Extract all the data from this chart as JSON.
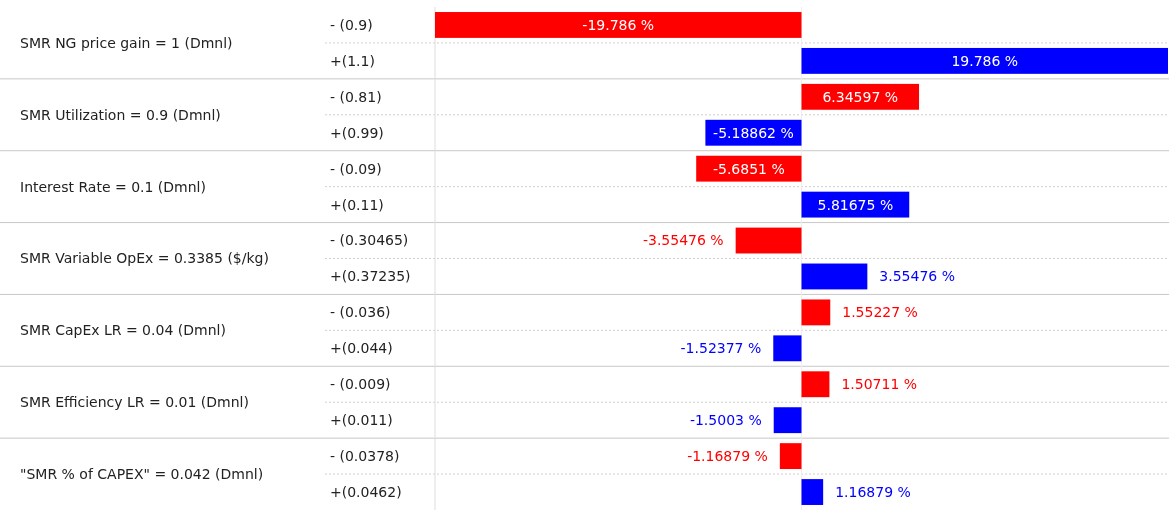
{
  "chart_data": {
    "type": "bar",
    "orientation": "horizontal",
    "categories": [
      "- (0.9)",
      "+(1.1)",
      "- (0.81)",
      "+(0.99)",
      "- (0.09)",
      "+(0.11)",
      "- (0.30465)",
      "+(0.37235)",
      "- (0.036)",
      "+(0.044)",
      "- (0.009)",
      "+(0.011)",
      "- (0.0378)",
      "+(0.0462)"
    ],
    "values": [
      -19.786,
      19.786,
      6.34597,
      -5.18862,
      -5.6851,
      5.81675,
      -3.55476,
      3.55476,
      1.55227,
      -1.52377,
      1.50711,
      -1.5003,
      -1.16879,
      1.16879
    ],
    "colors": [
      "#ff0000",
      "#0000ff",
      "#ff0000",
      "#0000ff",
      "#ff0000",
      "#0000ff",
      "#ff0000",
      "#0000ff",
      "#ff0000",
      "#0000ff",
      "#ff0000",
      "#0000ff",
      "#ff0000",
      "#0000ff"
    ],
    "value_labels": [
      "-19.786 %",
      "19.786 %",
      "6.34597 %",
      "-5.18862 %",
      "-5.6851 %",
      "5.81675 %",
      "-3.55476 %",
      "3.55476 %",
      "1.55227 %",
      "-1.52377 %",
      "1.50711 %",
      "-1.5003 %",
      "-1.16879 %",
      "1.16879 %"
    ],
    "annotations": [
      "SMR NG price gain = 1 (Dmnl)",
      "SMR Utilization = 0.9 (Dmnl)",
      "Interest Rate = 0.1 (Dmnl)",
      "SMR Variable OpEx = 0.3385 ($/kg)",
      "SMR CapEx LR = 0.04 (Dmnl)",
      "SMR Efficiency LR = 0.01 (Dmnl)",
      "\"SMR % of CAPEX\" = 0.042 (Dmnl)"
    ]
  }
}
